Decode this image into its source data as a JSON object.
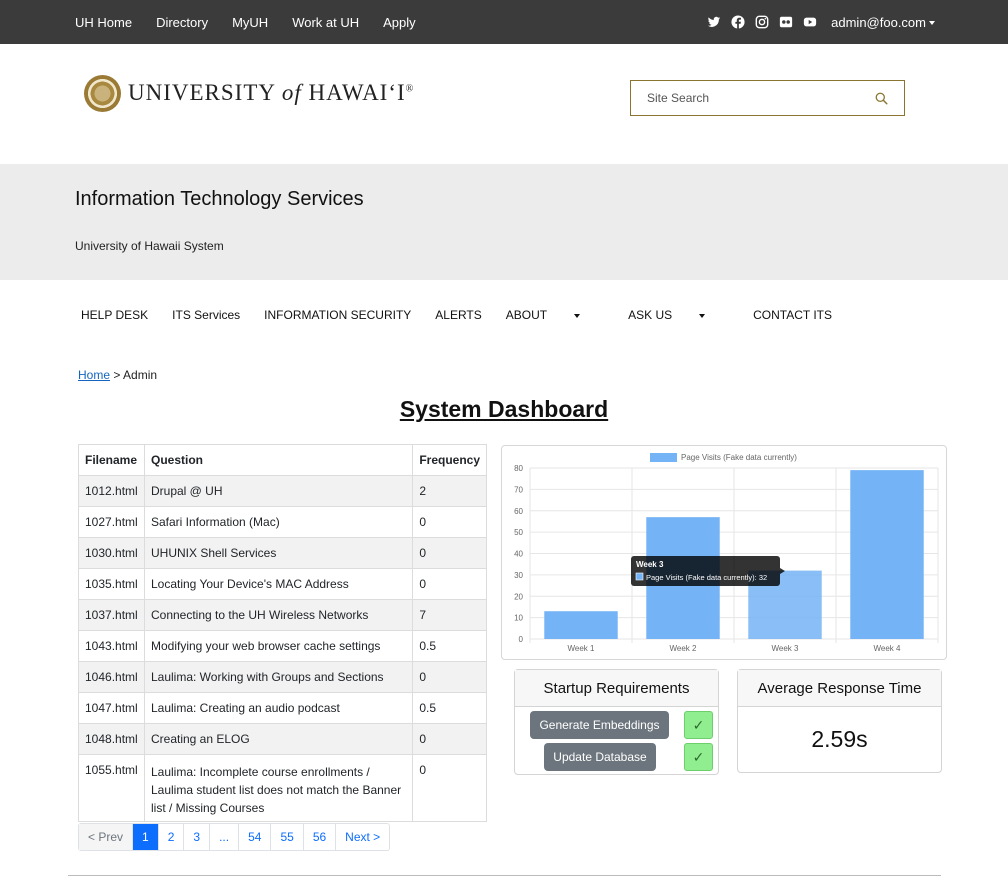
{
  "topbar": {
    "links": [
      "UH Home",
      "Directory",
      "MyUH",
      "Work at UH",
      "Apply"
    ],
    "social_icons": [
      "twitter-icon",
      "facebook-icon",
      "instagram-icon",
      "flickr-icon",
      "youtube-icon"
    ],
    "user": "admin@foo.com"
  },
  "header": {
    "logo_word1": "UNIVERSITY",
    "logo_word2": "of",
    "logo_word3": "HAWAI‘I",
    "logo_reg": "®",
    "search_placeholder": "Site Search"
  },
  "banner": {
    "title": "Information Technology Services",
    "subtitle": "University of Hawaii System"
  },
  "mainnav": [
    "HELP DESK",
    "ITS Services",
    "INFORMATION SECURITY",
    "ALERTS",
    "ABOUT",
    "ASK US",
    "CONTACT ITS"
  ],
  "breadcrumb": {
    "home": "Home",
    "sep": ">",
    "current": "Admin"
  },
  "page_title": "System Dashboard",
  "table": {
    "headers": [
      "Filename",
      "Question",
      "Frequency"
    ],
    "rows": [
      [
        "1012.html",
        "Drupal @ UH",
        "2"
      ],
      [
        "1027.html",
        "Safari Information (Mac)",
        "0"
      ],
      [
        "1030.html",
        "UHUNIX Shell Services",
        "0"
      ],
      [
        "1035.html",
        "Locating Your Device's MAC Address",
        "0"
      ],
      [
        "1037.html",
        "Connecting to the UH Wireless Networks",
        "7"
      ],
      [
        "1043.html",
        "Modifying your web browser cache settings",
        "0.5"
      ],
      [
        "1046.html",
        "Laulima: Working with Groups and Sections",
        "0"
      ],
      [
        "1047.html",
        "Laulima: Creating an audio podcast",
        "0.5"
      ],
      [
        "1048.html",
        "Creating an ELOG",
        "0"
      ],
      [
        "1055.html",
        "Laulima: Incomplete course enrollments / Laulima student list does not match the Banner list / Missing Courses",
        "0"
      ]
    ]
  },
  "pagination": [
    "< Prev",
    "1",
    "2",
    "3",
    "...",
    "54",
    "55",
    "56",
    "Next >"
  ],
  "chart_data": {
    "type": "bar",
    "categories": [
      "Week 1",
      "Week 2",
      "Week 3",
      "Week 4"
    ],
    "series": [
      {
        "name": "Page Visits (Fake data currently)",
        "values": [
          13,
          57,
          32,
          79
        ]
      }
    ],
    "ylim": [
      0,
      80
    ],
    "yticks": [
      0,
      10,
      20,
      30,
      40,
      50,
      60,
      70,
      80
    ],
    "legend": "top",
    "grid": true,
    "bar_color": "#74b3f5",
    "tooltip": {
      "title": "Week 3",
      "label": "Page Visits (Fake data currently): 32"
    }
  },
  "startup": {
    "title": "Startup Requirements",
    "buttons": [
      "Generate Embeddings",
      "Update Database"
    ],
    "check": "✓"
  },
  "response": {
    "title": "Average Response Time",
    "value": "2.59s"
  }
}
